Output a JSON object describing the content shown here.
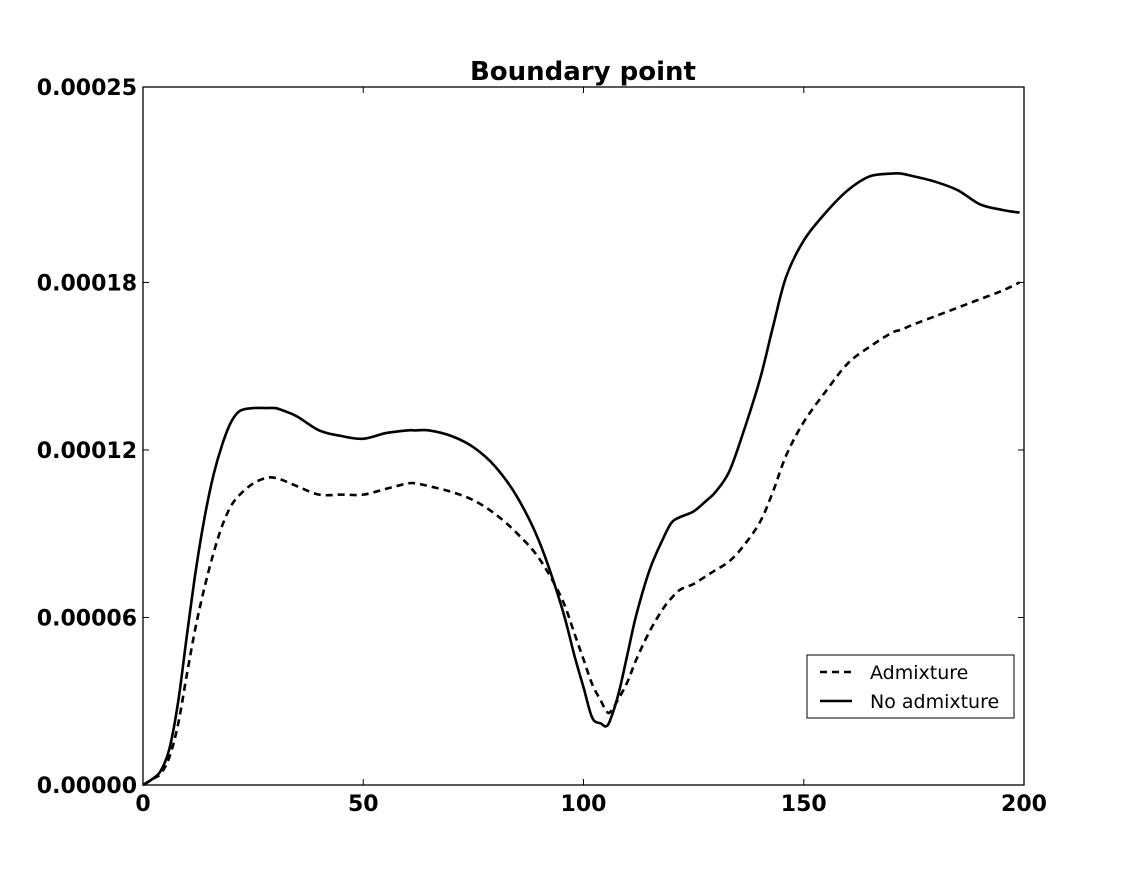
{
  "chart_data": {
    "type": "line",
    "title": "Boundary point",
    "xlabel": "",
    "ylabel": "",
    "xlim": [
      0,
      200
    ],
    "ylim": [
      0,
      0.00025
    ],
    "x_ticks": [
      0,
      50,
      100,
      150,
      200
    ],
    "x_tick_labels": [
      "0",
      "50",
      "100",
      "150",
      "200"
    ],
    "y_ticks": [
      0,
      6e-05,
      0.00012,
      0.00018,
      0.00025
    ],
    "y_tick_labels": [
      "0.00000",
      "0.00006",
      "0.00012",
      "0.00018",
      "0.00025"
    ],
    "grid": false,
    "legend_position": "lower-right",
    "x": [
      0,
      2,
      4,
      6,
      8,
      10,
      12,
      14,
      16,
      18,
      20,
      22,
      25,
      28,
      30,
      32,
      35,
      40,
      45,
      50,
      55,
      60,
      62,
      65,
      70,
      75,
      80,
      85,
      90,
      95,
      98,
      100,
      102,
      104,
      105,
      106,
      108,
      110,
      112,
      115,
      118,
      120,
      122,
      125,
      128,
      130,
      133,
      136,
      140,
      143,
      146,
      150,
      155,
      160,
      165,
      170,
      172,
      175,
      180,
      185,
      190,
      195,
      199
    ],
    "series": [
      {
        "name": "Admixture",
        "style": "dashed",
        "color": "#000000",
        "values": [
          0.0,
          2e-06,
          4e-06,
          1e-05,
          2.2e-05,
          4e-05,
          5.7e-05,
          7.1e-05,
          8.3e-05,
          9.3e-05,
          0.0001,
          0.000104,
          0.000108,
          0.00011,
          0.00011,
          0.000109,
          0.000107,
          0.000104,
          0.000104,
          0.000104,
          0.000106,
          0.000108,
          0.000108,
          0.000107,
          0.000105,
          0.000102,
          9.7e-05,
          9e-05,
          8.1e-05,
          6.7e-05,
          5.4e-05,
          4.5e-05,
          3.6e-05,
          3e-05,
          2.7e-05,
          2.6e-05,
          3.1e-05,
          3.7e-05,
          4.5e-05,
          5.5e-05,
          6.3e-05,
          6.7e-05,
          7e-05,
          7.2e-05,
          7.5e-05,
          7.7e-05,
          8e-05,
          8.5e-05,
          9.4e-05,
          0.000105,
          0.000118,
          0.00013,
          0.000141,
          0.000151,
          0.000157,
          0.000162,
          0.000163,
          0.000165,
          0.000168,
          0.000171,
          0.000174,
          0.000177,
          0.00018
        ]
      },
      {
        "name": "No admixture",
        "style": "solid",
        "color": "#000000",
        "values": [
          0.0,
          2e-06,
          5e-06,
          1.3e-05,
          3e-05,
          5.4e-05,
          7.7e-05,
          9.6e-05,
          0.000111,
          0.000122,
          0.00013,
          0.000134,
          0.000135,
          0.000135,
          0.000135,
          0.000134,
          0.000132,
          0.000127,
          0.000125,
          0.000124,
          0.000126,
          0.000127,
          0.000127,
          0.000127,
          0.000125,
          0.000121,
          0.000114,
          0.000103,
          8.7e-05,
          6.4e-05,
          4.6e-05,
          3.5e-05,
          2.4e-05,
          2.2e-05,
          2.1e-05,
          2.3e-05,
          3.3e-05,
          4.7e-05,
          6.1e-05,
          7.7e-05,
          8.8e-05,
          9.4e-05,
          9.6e-05,
          9.8e-05,
          0.000102,
          0.000105,
          0.000112,
          0.000125,
          0.000145,
          0.000164,
          0.000182,
          0.000195,
          0.000205,
          0.000213,
          0.000218,
          0.000219,
          0.000219,
          0.000218,
          0.000216,
          0.000213,
          0.000208,
          0.000206,
          0.000205
        ]
      }
    ]
  }
}
